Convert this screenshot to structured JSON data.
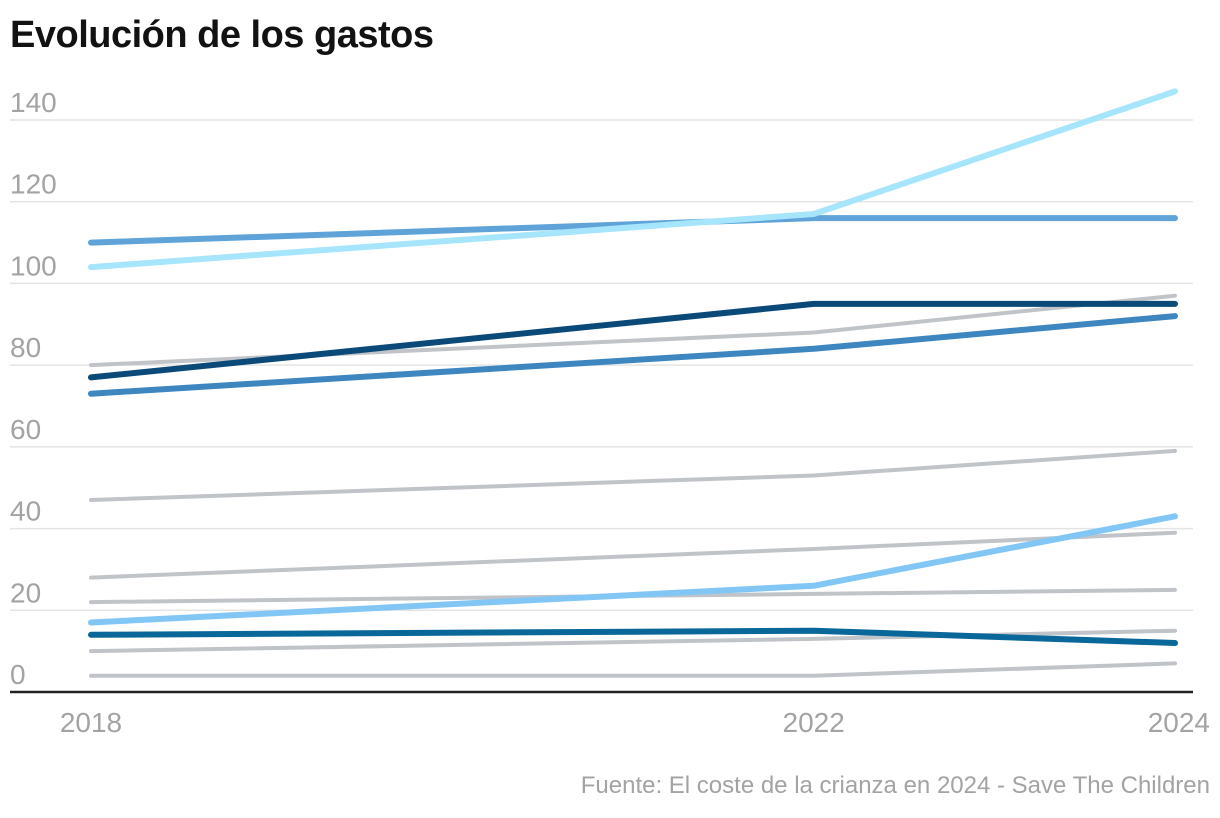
{
  "chart_data": {
    "type": "line",
    "title": "Evolución de los gastos",
    "source": "Fuente: El coste de la crianza en 2024 - Save The Children",
    "xlabel": "",
    "ylabel": "",
    "x": [
      "2018",
      "2022",
      "2024"
    ],
    "x_numeric": [
      2018,
      2022,
      2024
    ],
    "ylim": [
      0,
      140
    ],
    "yticks": [
      0,
      20,
      40,
      60,
      80,
      100,
      120,
      140
    ],
    "ytick_labels": [
      "0",
      "20",
      "40",
      "60",
      "80",
      "100",
      "120",
      "140"
    ],
    "xtick_labels": [
      "2018",
      "2022",
      "2024"
    ],
    "grid": true,
    "legend": "none",
    "series": [
      {
        "name": "series-gray-1",
        "color": "#c0c4c8",
        "values": [
          80,
          88,
          97
        ]
      },
      {
        "name": "series-gray-2",
        "color": "#c0c4c8",
        "values": [
          47,
          53,
          59
        ]
      },
      {
        "name": "series-gray-3",
        "color": "#c0c4c8",
        "values": [
          28,
          35,
          39
        ]
      },
      {
        "name": "series-gray-4",
        "color": "#c0c4c8",
        "values": [
          22,
          24,
          25
        ]
      },
      {
        "name": "series-gray-5",
        "color": "#c0c4c8",
        "values": [
          10,
          13,
          15
        ]
      },
      {
        "name": "series-gray-6",
        "color": "#c0c4c8",
        "values": [
          4,
          4,
          7
        ]
      },
      {
        "name": "series-medium-blue",
        "color": "#5fa3d8",
        "values": [
          110,
          116,
          116
        ]
      },
      {
        "name": "series-light-blue",
        "color": "#a6e5fb",
        "values": [
          104,
          117,
          147
        ]
      },
      {
        "name": "series-navy",
        "color": "#0b4a78",
        "values": [
          77,
          95,
          95
        ]
      },
      {
        "name": "series-steel-blue",
        "color": "#3d86bf",
        "values": [
          73,
          84,
          92
        ]
      },
      {
        "name": "series-sky-blue",
        "color": "#82c6f5",
        "values": [
          17,
          26,
          43
        ]
      },
      {
        "name": "series-dark-teal",
        "color": "#096799",
        "values": [
          14,
          15,
          12
        ]
      }
    ]
  }
}
